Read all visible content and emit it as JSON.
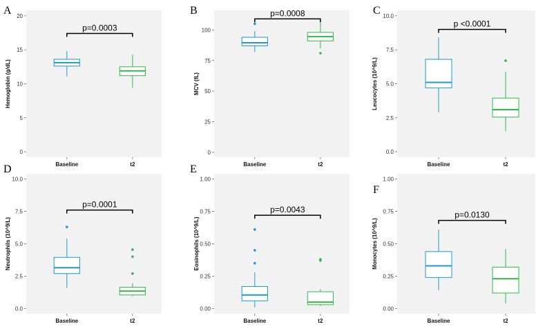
{
  "colors": {
    "baseline": "#1f96d6",
    "t2": "#2dbb45",
    "panel_bg": "#f2f2f2",
    "bracket": "#000000"
  },
  "chart_data": [
    {
      "type": "box",
      "letter": "A",
      "ylabel": "Hemoglobin (g/dL)",
      "ylim": [
        -0.8,
        20.8
      ],
      "yticks": [
        0,
        5,
        10,
        15,
        20
      ],
      "ytick_labels": [
        "0",
        "5",
        "10",
        "15",
        "20"
      ],
      "categories": [
        "Baseline",
        "t2"
      ],
      "pvalue": "p=0.0003",
      "bracket_y": 17.4,
      "series": [
        {
          "name": "Baseline",
          "min": 11.1,
          "q1": 12.6,
          "median": 13.1,
          "q3": 13.6,
          "max": 14.8,
          "outliers": []
        },
        {
          "name": "t2",
          "min": 9.4,
          "q1": 11.2,
          "median": 11.9,
          "q3": 12.5,
          "max": 14.3,
          "outliers": []
        }
      ]
    },
    {
      "type": "box",
      "letter": "B",
      "ylabel": "MCV (fL)",
      "ylim": [
        -4,
        116
      ],
      "yticks": [
        0,
        25,
        50,
        75,
        100
      ],
      "ytick_labels": [
        "0",
        "25",
        "50",
        "75",
        "100"
      ],
      "categories": [
        "Baseline",
        "t2"
      ],
      "pvalue": "p=0.0008",
      "bracket_y": 109,
      "series": [
        {
          "name": "Baseline",
          "min": 82,
          "q1": 87,
          "median": 89.5,
          "q3": 94,
          "max": 99,
          "outliers": [
            105
          ]
        },
        {
          "name": "t2",
          "min": 85,
          "q1": 91,
          "median": 94.5,
          "q3": 98,
          "max": 106,
          "outliers": [
            81
          ]
        }
      ]
    },
    {
      "type": "box",
      "letter": "C",
      "ylabel": "Leucocytes (10^9/L)",
      "ylim": [
        -0.4,
        10.4
      ],
      "yticks": [
        0,
        2.5,
        5,
        7.5,
        10
      ],
      "ytick_labels": [
        "0.0",
        "2.5",
        "5.0",
        "7.5",
        "10.0"
      ],
      "categories": [
        "Baseline",
        "t2"
      ],
      "pvalue": "p <0.0001",
      "bracket_y": 9.0,
      "series": [
        {
          "name": "Baseline",
          "min": 2.9,
          "q1": 4.7,
          "median": 5.1,
          "q3": 6.8,
          "max": 8.4,
          "outliers": []
        },
        {
          "name": "t2",
          "min": 1.5,
          "q1": 2.55,
          "median": 3.1,
          "q3": 3.95,
          "max": 5.9,
          "outliers": [
            6.7
          ]
        }
      ]
    },
    {
      "type": "box",
      "letter": "D",
      "ylabel": "Neutrophils (10^9/L)",
      "ylim": [
        -0.4,
        10.4
      ],
      "yticks": [
        0,
        2.5,
        5,
        7.5,
        10
      ],
      "ytick_labels": [
        "0.0",
        "2.5",
        "5.0",
        "7.5",
        "10.0"
      ],
      "categories": [
        "Baseline",
        "t2"
      ],
      "pvalue": "p=0.0001",
      "bracket_y": 7.6,
      "series": [
        {
          "name": "Baseline",
          "min": 1.6,
          "q1": 2.7,
          "median": 3.15,
          "q3": 3.95,
          "max": 5.4,
          "outliers": [
            6.3
          ]
        },
        {
          "name": "t2",
          "min": 0.95,
          "q1": 1.05,
          "median": 1.35,
          "q3": 1.65,
          "max": 1.95,
          "outliers": [
            2.7,
            4.0,
            4.55
          ]
        }
      ]
    },
    {
      "type": "box",
      "letter": "E",
      "ylabel": "Eosinophils (10^9/L)",
      "ylim": [
        -0.04,
        1.04
      ],
      "yticks": [
        0,
        0.25,
        0.5,
        0.75,
        1.0
      ],
      "ytick_labels": [
        "0.00",
        "0.25",
        "0.50",
        "0.75",
        "1.00"
      ],
      "categories": [
        "Baseline",
        "t2"
      ],
      "pvalue": "p=0.0043",
      "bracket_y": 0.72,
      "series": [
        {
          "name": "Baseline",
          "min": 0.01,
          "q1": 0.06,
          "median": 0.105,
          "q3": 0.17,
          "max": 0.28,
          "outliers": [
            0.35,
            0.45,
            0.61
          ]
        },
        {
          "name": "t2",
          "min": 0.02,
          "q1": 0.03,
          "median": 0.05,
          "q3": 0.13,
          "max": 0.15,
          "outliers": [
            0.37,
            0.38
          ]
        }
      ]
    },
    {
      "type": "box",
      "letter": "F",
      "ylabel": "Monocytes (10^9/L)",
      "ylim": [
        -0.04,
        1.04
      ],
      "yticks": [
        0,
        0.25,
        0.5,
        0.75,
        1.0
      ],
      "ytick_labels": [
        "0.00",
        "0.25",
        "0.50",
        "0.75",
        "1.00"
      ],
      "categories": [
        "Baseline",
        "t2"
      ],
      "pvalue": "p=0.0130",
      "bracket_y": 0.68,
      "series": [
        {
          "name": "Baseline",
          "min": 0.14,
          "q1": 0.24,
          "median": 0.33,
          "q3": 0.44,
          "max": 0.61,
          "outliers": []
        },
        {
          "name": "t2",
          "min": 0.04,
          "q1": 0.12,
          "median": 0.23,
          "q3": 0.32,
          "max": 0.46,
          "outliers": []
        }
      ]
    }
  ]
}
